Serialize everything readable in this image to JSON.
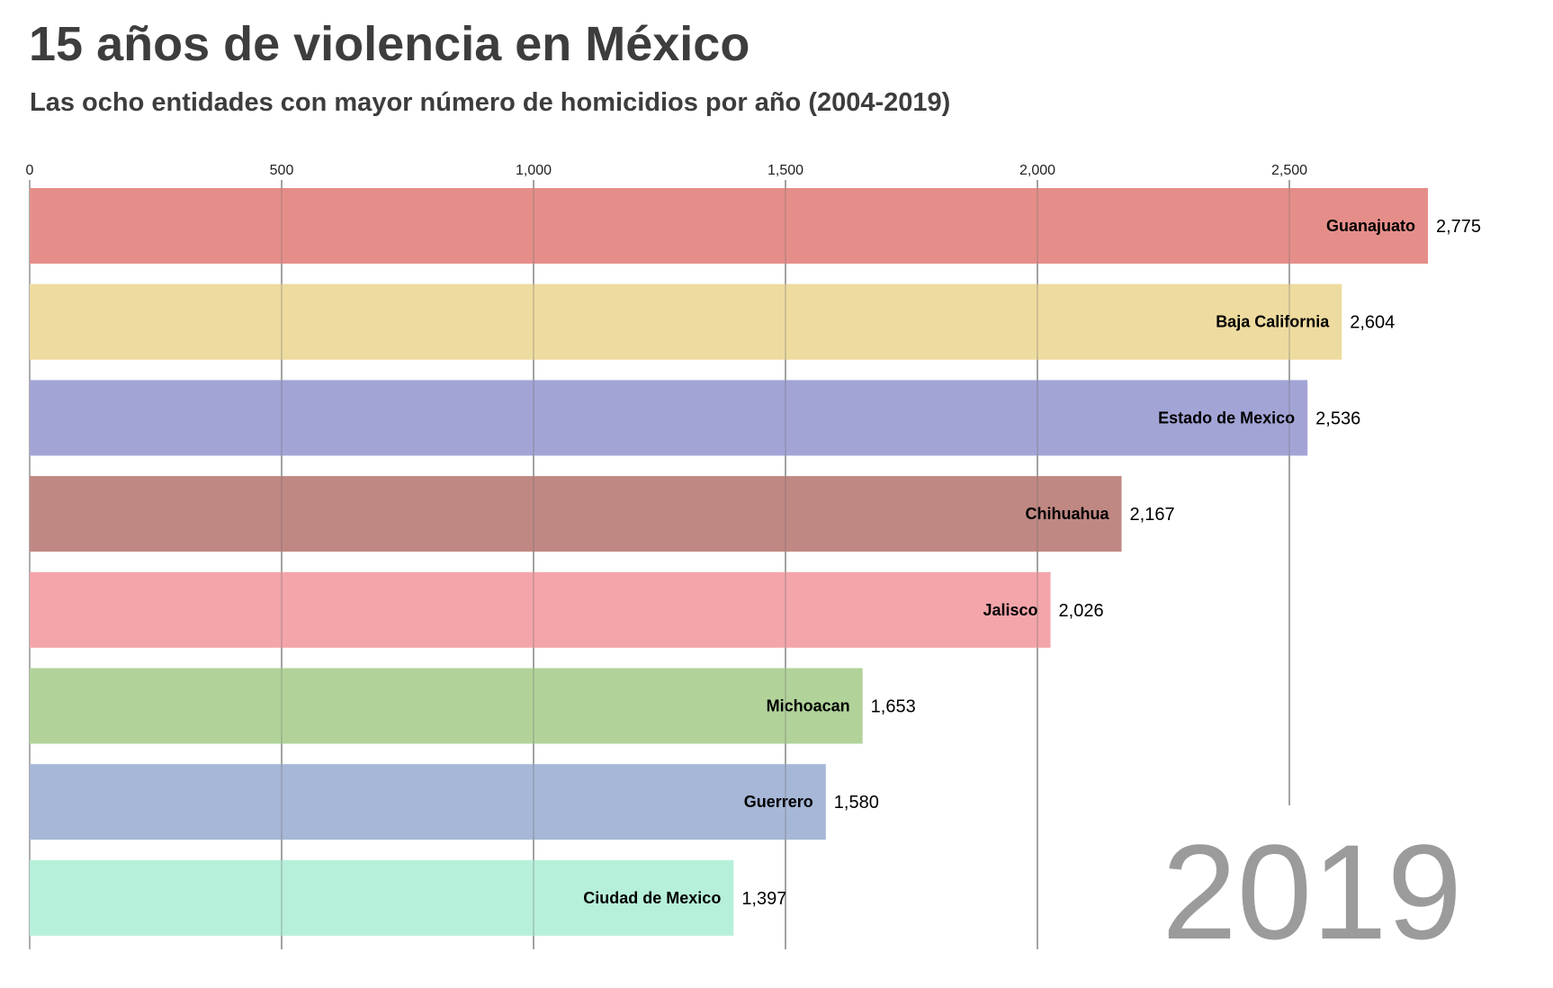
{
  "header": {
    "title": "15 años de violencia en México",
    "subtitle": "Las ocho entidades con mayor número de homicidios por año (2004-2019)"
  },
  "chart_data": {
    "type": "bar",
    "orientation": "horizontal",
    "year": "2019",
    "xlim": [
      0,
      2775
    ],
    "ticks": [
      0,
      500,
      1000,
      1500,
      2000,
      2500
    ],
    "tick_labels": [
      "0",
      "500",
      "1,000",
      "1,500",
      "2,000",
      "2,500"
    ],
    "grid": true,
    "axis_position": "top",
    "categories": [
      "Guanajuato",
      "Baja California",
      "Estado de Mexico",
      "Chihuahua",
      "Jalisco",
      "Michoacan",
      "Guerrero",
      "Ciudad de Mexico"
    ],
    "values": [
      2775,
      2604,
      2536,
      2167,
      2026,
      1653,
      1580,
      1397
    ],
    "value_labels": [
      "2,775",
      "2,604",
      "2,536",
      "2,167",
      "2,026",
      "1,653",
      "1,580",
      "1,397"
    ],
    "colors": [
      "#e58e89",
      "#eedb9f",
      "#a3a4d6",
      "#c08883",
      "#f3a5aa",
      "#b1d39a",
      "#a6b7d7",
      "#b7f0da"
    ]
  }
}
